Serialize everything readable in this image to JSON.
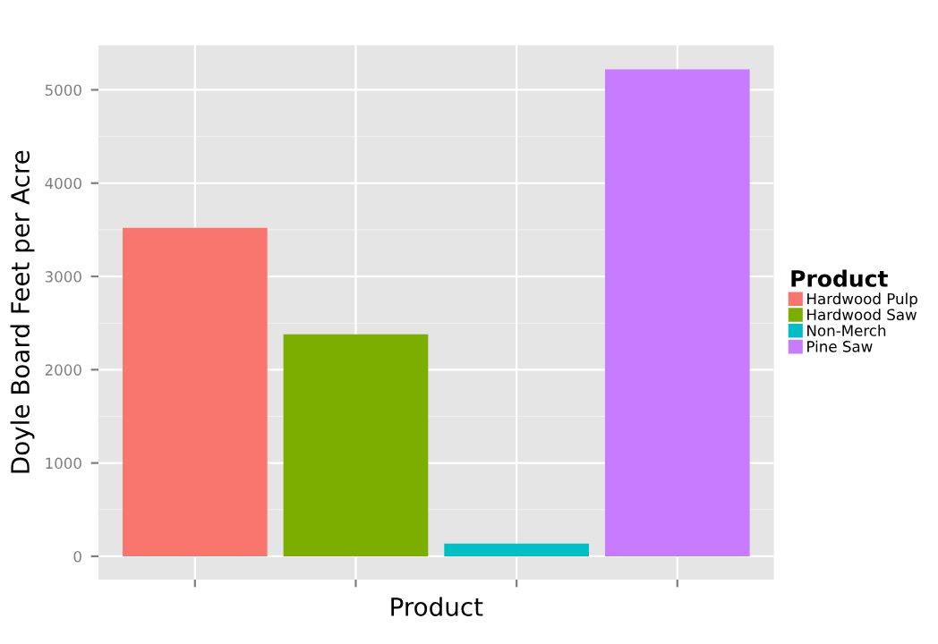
{
  "chart_data": {
    "type": "bar",
    "xlabel": "Product",
    "ylabel": "Doyle Board Feet per Acre",
    "legend_title": "Product",
    "categories": [
      null,
      null,
      null,
      null
    ],
    "series": [
      {
        "name": "Hardwood Pulp",
        "color": "#f8766d",
        "values": [
          3520,
          null,
          null,
          null
        ]
      },
      {
        "name": "Hardwood Saw",
        "color": "#7cae00",
        "values": [
          null,
          2380,
          null,
          null
        ]
      },
      {
        "name": "Non-Merch",
        "color": "#00bfc4",
        "values": [
          null,
          null,
          135,
          null
        ]
      },
      {
        "name": "Pine Saw",
        "color": "#c77cff",
        "values": [
          null,
          null,
          null,
          5220
        ]
      }
    ],
    "ylim": [
      -250,
      5480
    ],
    "yticks": [
      0,
      1000,
      2000,
      3000,
      4000,
      5000
    ],
    "grid": true,
    "legend": "right",
    "tick_labels": "y"
  }
}
